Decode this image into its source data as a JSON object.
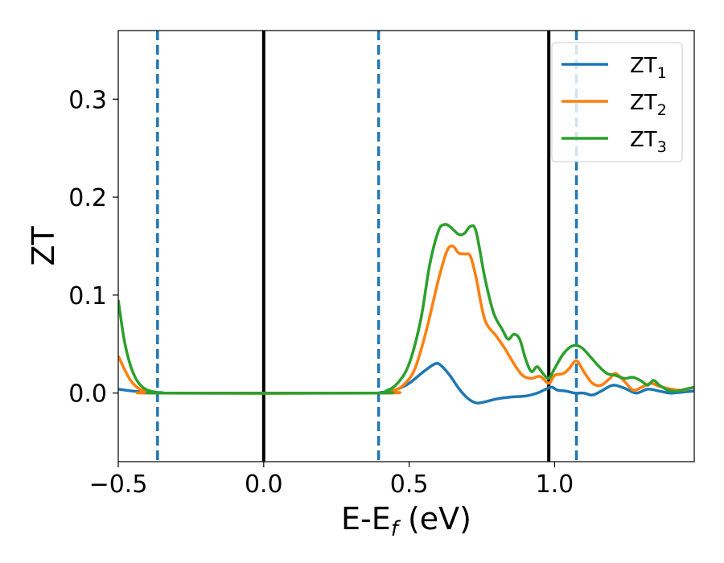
{
  "chart_data": {
    "type": "line",
    "xlabel": "E-E",
    "xlabel_sub": "f",
    "xlabel_unit": " (eV)",
    "ylabel": "ZT",
    "xlim": [
      -0.5,
      1.48
    ],
    "ylim": [
      -0.07,
      0.37
    ],
    "xticks": [
      -0.5,
      0.0,
      0.5,
      1.0
    ],
    "xtick_labels": [
      "−0.5",
      "0.0",
      "0.5",
      "1.0"
    ],
    "yticks": [
      0.0,
      0.1,
      0.2,
      0.3
    ],
    "ytick_labels": [
      "0.0",
      "0.1",
      "0.2",
      "0.3"
    ],
    "grid": false,
    "legend_position": "top-right",
    "vlines": [
      {
        "x": -0.365,
        "style": "dashed",
        "color": "#1f77b4"
      },
      {
        "x": 0.0,
        "style": "solid",
        "color": "#000000"
      },
      {
        "x": 0.395,
        "style": "dashed",
        "color": "#1f77b4"
      },
      {
        "x": 0.98,
        "style": "solid",
        "color": "#000000"
      },
      {
        "x": 1.075,
        "style": "dashed",
        "color": "#1f77b4"
      }
    ],
    "series": [
      {
        "name": "ZT",
        "name_sub": "1",
        "color": "#1f77b4",
        "points": [
          [
            -0.5,
            0.004
          ],
          [
            -0.45,
            0.002
          ],
          [
            -0.4,
            0.001
          ],
          [
            -0.35,
            0.0005
          ],
          [
            -0.3,
            0.0
          ],
          [
            0.35,
            0.0
          ],
          [
            0.4,
            0.0005
          ],
          [
            0.45,
            0.003
          ],
          [
            0.5,
            0.01
          ],
          [
            0.55,
            0.022
          ],
          [
            0.59,
            0.03
          ],
          [
            0.61,
            0.028
          ],
          [
            0.64,
            0.018
          ],
          [
            0.67,
            0.005
          ],
          [
            0.7,
            -0.005
          ],
          [
            0.73,
            -0.01
          ],
          [
            0.76,
            -0.009
          ],
          [
            0.8,
            -0.006
          ],
          [
            0.85,
            -0.004
          ],
          [
            0.9,
            -0.003
          ],
          [
            0.94,
            0.0
          ],
          [
            0.97,
            0.004
          ],
          [
            0.99,
            0.006
          ],
          [
            1.01,
            0.003
          ],
          [
            1.04,
            0.002
          ],
          [
            1.07,
            0.0
          ],
          [
            1.1,
            0.0
          ],
          [
            1.13,
            -0.002
          ],
          [
            1.16,
            0.002
          ],
          [
            1.2,
            0.008
          ],
          [
            1.24,
            0.005
          ],
          [
            1.28,
            0.0
          ],
          [
            1.32,
            0.004
          ],
          [
            1.36,
            0.002
          ],
          [
            1.4,
            0.0
          ],
          [
            1.44,
            0.001
          ],
          [
            1.48,
            0.002
          ]
        ]
      },
      {
        "name": "ZT",
        "name_sub": "2",
        "color": "#ff7f0e",
        "points": [
          [
            -0.5,
            0.038
          ],
          [
            -0.48,
            0.025
          ],
          [
            -0.46,
            0.014
          ],
          [
            -0.44,
            0.007
          ],
          [
            -0.42,
            0.003
          ],
          [
            -0.4,
            0.001
          ],
          [
            -0.37,
            0.0
          ],
          [
            0.4,
            0.0
          ],
          [
            0.44,
            0.002
          ],
          [
            0.48,
            0.008
          ],
          [
            0.52,
            0.025
          ],
          [
            0.56,
            0.065
          ],
          [
            0.6,
            0.115
          ],
          [
            0.63,
            0.145
          ],
          [
            0.65,
            0.15
          ],
          [
            0.67,
            0.143
          ],
          [
            0.69,
            0.142
          ],
          [
            0.71,
            0.14
          ],
          [
            0.73,
            0.118
          ],
          [
            0.76,
            0.075
          ],
          [
            0.8,
            0.058
          ],
          [
            0.83,
            0.045
          ],
          [
            0.86,
            0.03
          ],
          [
            0.89,
            0.018
          ],
          [
            0.92,
            0.015
          ],
          [
            0.95,
            0.017
          ],
          [
            0.98,
            0.01
          ],
          [
            1.0,
            0.018
          ],
          [
            1.03,
            0.02
          ],
          [
            1.05,
            0.025
          ],
          [
            1.075,
            0.033
          ],
          [
            1.1,
            0.022
          ],
          [
            1.13,
            0.01
          ],
          [
            1.16,
            0.008
          ],
          [
            1.19,
            0.015
          ],
          [
            1.21,
            0.02
          ],
          [
            1.24,
            0.012
          ],
          [
            1.27,
            0.003
          ],
          [
            1.3,
            0.006
          ],
          [
            1.33,
            0.01
          ],
          [
            1.36,
            0.007
          ],
          [
            1.4,
            0.004
          ],
          [
            1.44,
            0.003
          ],
          [
            1.48,
            0.006
          ]
        ]
      },
      {
        "name": "ZT",
        "name_sub": "3",
        "color": "#2ca02c",
        "points": [
          [
            -0.5,
            0.095
          ],
          [
            -0.48,
            0.055
          ],
          [
            -0.46,
            0.03
          ],
          [
            -0.44,
            0.015
          ],
          [
            -0.42,
            0.007
          ],
          [
            -0.4,
            0.003
          ],
          [
            -0.37,
            0.001
          ],
          [
            -0.34,
            0.0
          ],
          [
            0.38,
            0.0
          ],
          [
            0.42,
            0.002
          ],
          [
            0.46,
            0.01
          ],
          [
            0.5,
            0.03
          ],
          [
            0.54,
            0.075
          ],
          [
            0.57,
            0.13
          ],
          [
            0.6,
            0.165
          ],
          [
            0.62,
            0.172
          ],
          [
            0.64,
            0.17
          ],
          [
            0.67,
            0.162
          ],
          [
            0.69,
            0.163
          ],
          [
            0.71,
            0.17
          ],
          [
            0.73,
            0.165
          ],
          [
            0.76,
            0.118
          ],
          [
            0.79,
            0.082
          ],
          [
            0.82,
            0.065
          ],
          [
            0.84,
            0.055
          ],
          [
            0.86,
            0.06
          ],
          [
            0.88,
            0.055
          ],
          [
            0.9,
            0.035
          ],
          [
            0.92,
            0.022
          ],
          [
            0.94,
            0.027
          ],
          [
            0.96,
            0.02
          ],
          [
            0.98,
            0.015
          ],
          [
            1.0,
            0.025
          ],
          [
            1.03,
            0.04
          ],
          [
            1.06,
            0.048
          ],
          [
            1.09,
            0.047
          ],
          [
            1.12,
            0.038
          ],
          [
            1.15,
            0.028
          ],
          [
            1.18,
            0.02
          ],
          [
            1.21,
            0.018
          ],
          [
            1.24,
            0.015
          ],
          [
            1.27,
            0.016
          ],
          [
            1.3,
            0.012
          ],
          [
            1.32,
            0.008
          ],
          [
            1.34,
            0.013
          ],
          [
            1.36,
            0.008
          ],
          [
            1.39,
            0.003
          ],
          [
            1.42,
            0.002
          ],
          [
            1.45,
            0.004
          ],
          [
            1.48,
            0.006
          ]
        ]
      }
    ]
  }
}
